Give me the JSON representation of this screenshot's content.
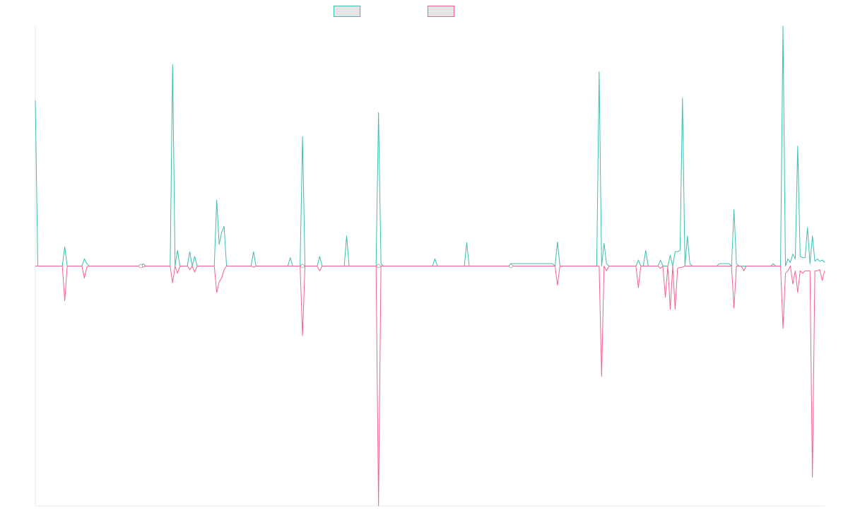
{
  "chart_data": {
    "type": "line",
    "title": "",
    "xlabel": "",
    "ylabel": "",
    "grid": false,
    "legend_position": "top",
    "axes": [
      "left",
      "bottom"
    ],
    "x_count": 323,
    "ylim": [
      -1.0,
      1.0
    ],
    "series": [
      {
        "color": "#3cbfb2",
        "fill": "#e6e6e6",
        "points": [
          [
            0,
            0.69
          ],
          [
            1,
            0
          ],
          [
            11,
            0
          ],
          [
            12,
            0.08
          ],
          [
            13,
            0
          ],
          [
            19,
            0
          ],
          [
            20,
            0.03
          ],
          [
            21,
            0.01
          ],
          [
            22,
            0
          ],
          [
            43,
            0
          ],
          [
            44,
            0.01
          ],
          [
            45,
            0
          ],
          [
            55,
            0
          ],
          [
            56,
            0.84
          ],
          [
            57,
            0
          ],
          [
            58,
            0.065
          ],
          [
            59,
            0
          ],
          [
            62,
            0
          ],
          [
            63,
            0.06
          ],
          [
            64,
            0
          ],
          [
            65,
            0.04
          ],
          [
            66,
            0
          ],
          [
            73,
            0
          ],
          [
            74,
            0.275
          ],
          [
            75,
            0.09
          ],
          [
            76,
            0.14
          ],
          [
            77,
            0.165
          ],
          [
            78,
            0
          ],
          [
            88,
            0
          ],
          [
            89,
            0.06
          ],
          [
            90,
            0
          ],
          [
            103,
            0
          ],
          [
            104,
            0.035
          ],
          [
            105,
            0
          ],
          [
            108,
            0
          ],
          [
            109,
            0.54
          ],
          [
            110,
            0
          ],
          [
            115,
            0
          ],
          [
            116,
            0.04
          ],
          [
            117,
            0
          ],
          [
            126,
            0
          ],
          [
            127,
            0.125
          ],
          [
            128,
            0
          ],
          [
            139,
            0
          ],
          [
            140,
            0.64
          ],
          [
            141,
            0.01
          ],
          [
            142,
            0
          ],
          [
            162,
            0
          ],
          [
            163,
            0.03
          ],
          [
            164,
            0
          ],
          [
            175,
            0
          ],
          [
            176,
            0.098
          ],
          [
            177,
            0
          ],
          [
            193,
            0
          ],
          [
            194,
            0.01
          ],
          [
            212,
            0
          ],
          [
            213,
            0.1
          ],
          [
            214,
            0
          ],
          [
            229,
            0
          ],
          [
            230,
            0.81
          ],
          [
            231,
            0
          ],
          [
            232,
            0.095
          ],
          [
            233,
            0.01
          ],
          [
            234,
            0
          ],
          [
            245,
            0
          ],
          [
            246,
            0.025
          ],
          [
            247,
            0
          ],
          [
            248,
            0
          ],
          [
            249,
            0.065
          ],
          [
            250,
            0
          ],
          [
            254,
            0
          ],
          [
            255,
            0.025
          ],
          [
            256,
            0
          ],
          [
            258,
            0
          ],
          [
            259,
            0.045
          ],
          [
            260,
            0
          ],
          [
            261,
            0.06
          ],
          [
            262,
            0.06
          ],
          [
            263,
            0.065
          ],
          [
            264,
            0.7
          ],
          [
            265,
            0
          ],
          [
            266,
            0.125
          ],
          [
            267,
            0.01
          ],
          [
            268,
            0
          ],
          [
            278,
            0
          ],
          [
            279,
            0.01
          ],
          [
            284,
            0
          ],
          [
            285,
            0.235
          ],
          [
            286,
            0.01
          ],
          [
            287,
            0
          ],
          [
            300,
            0
          ],
          [
            301,
            0.01
          ],
          [
            302,
            0
          ],
          [
            304,
            0
          ],
          [
            305,
            1.0
          ],
          [
            306,
            0
          ],
          [
            307,
            0.03
          ],
          [
            308,
            0.015
          ],
          [
            309,
            0.05
          ],
          [
            310,
            0.03
          ],
          [
            311,
            0.5
          ],
          [
            312,
            0.04
          ],
          [
            313,
            0.035
          ],
          [
            314,
            0.035
          ],
          [
            315,
            0.16
          ],
          [
            316,
            0.01
          ],
          [
            317,
            0.125
          ],
          [
            318,
            0.02
          ],
          [
            319,
            0.03
          ],
          [
            320,
            0.02
          ],
          [
            321,
            0.025
          ],
          [
            322,
            0.015
          ]
        ]
      },
      {
        "color": "#f0648c",
        "fill": "#e6e6e6",
        "points": [
          [
            0,
            0
          ],
          [
            11,
            0
          ],
          [
            12,
            -0.145
          ],
          [
            13,
            0
          ],
          [
            19,
            0
          ],
          [
            20,
            -0.05
          ],
          [
            21,
            -0.005
          ],
          [
            22,
            0
          ],
          [
            43,
            0
          ],
          [
            44,
            -0.005
          ],
          [
            45,
            0
          ],
          [
            55,
            0
          ],
          [
            56,
            -0.07
          ],
          [
            57,
            0
          ],
          [
            58,
            -0.03
          ],
          [
            59,
            0
          ],
          [
            62,
            0
          ],
          [
            63,
            -0.015
          ],
          [
            64,
            0
          ],
          [
            65,
            -0.025
          ],
          [
            66,
            0
          ],
          [
            73,
            0
          ],
          [
            74,
            -0.11
          ],
          [
            75,
            -0.065
          ],
          [
            76,
            -0.05
          ],
          [
            77,
            -0.015
          ],
          [
            78,
            0
          ],
          [
            88,
            0
          ],
          [
            89,
            -0.005
          ],
          [
            90,
            0
          ],
          [
            108,
            0
          ],
          [
            109,
            -0.29
          ],
          [
            110,
            0
          ],
          [
            115,
            0
          ],
          [
            116,
            -0.02
          ],
          [
            117,
            0
          ],
          [
            139,
            0
          ],
          [
            140,
            -1.0
          ],
          [
            141,
            0
          ],
          [
            193,
            0
          ],
          [
            194,
            -0.005
          ],
          [
            195,
            0
          ],
          [
            212,
            0
          ],
          [
            213,
            -0.08
          ],
          [
            214,
            0
          ],
          [
            230,
            0
          ],
          [
            231,
            -0.46
          ],
          [
            232,
            0
          ],
          [
            233,
            -0.02
          ],
          [
            234,
            0
          ],
          [
            245,
            0
          ],
          [
            246,
            -0.09
          ],
          [
            247,
            0
          ],
          [
            254,
            0
          ],
          [
            255,
            -0.01
          ],
          [
            256,
            0
          ],
          [
            257,
            -0.13
          ],
          [
            258,
            0
          ],
          [
            259,
            -0.18
          ],
          [
            260,
            0
          ],
          [
            261,
            -0.18
          ],
          [
            262,
            -0.01
          ],
          [
            263,
            -0.005
          ],
          [
            265,
            0
          ],
          [
            284,
            0
          ],
          [
            285,
            -0.175
          ],
          [
            286,
            0
          ],
          [
            288,
            0
          ],
          [
            289,
            -0.02
          ],
          [
            290,
            0
          ],
          [
            304,
            0
          ],
          [
            305,
            -0.26
          ],
          [
            306,
            -0.03
          ],
          [
            307,
            -0.02
          ],
          [
            308,
            0
          ],
          [
            309,
            -0.075
          ],
          [
            310,
            -0.02
          ],
          [
            311,
            -0.11
          ],
          [
            312,
            -0.02
          ],
          [
            313,
            -0.03
          ],
          [
            314,
            -0.02
          ],
          [
            315,
            -0.02
          ],
          [
            316,
            -0.02
          ],
          [
            317,
            -0.88
          ],
          [
            318,
            -0.02
          ],
          [
            319,
            -0.02
          ],
          [
            320,
            -0.015
          ],
          [
            321,
            -0.06
          ],
          [
            322,
            -0.02
          ]
        ]
      }
    ]
  }
}
